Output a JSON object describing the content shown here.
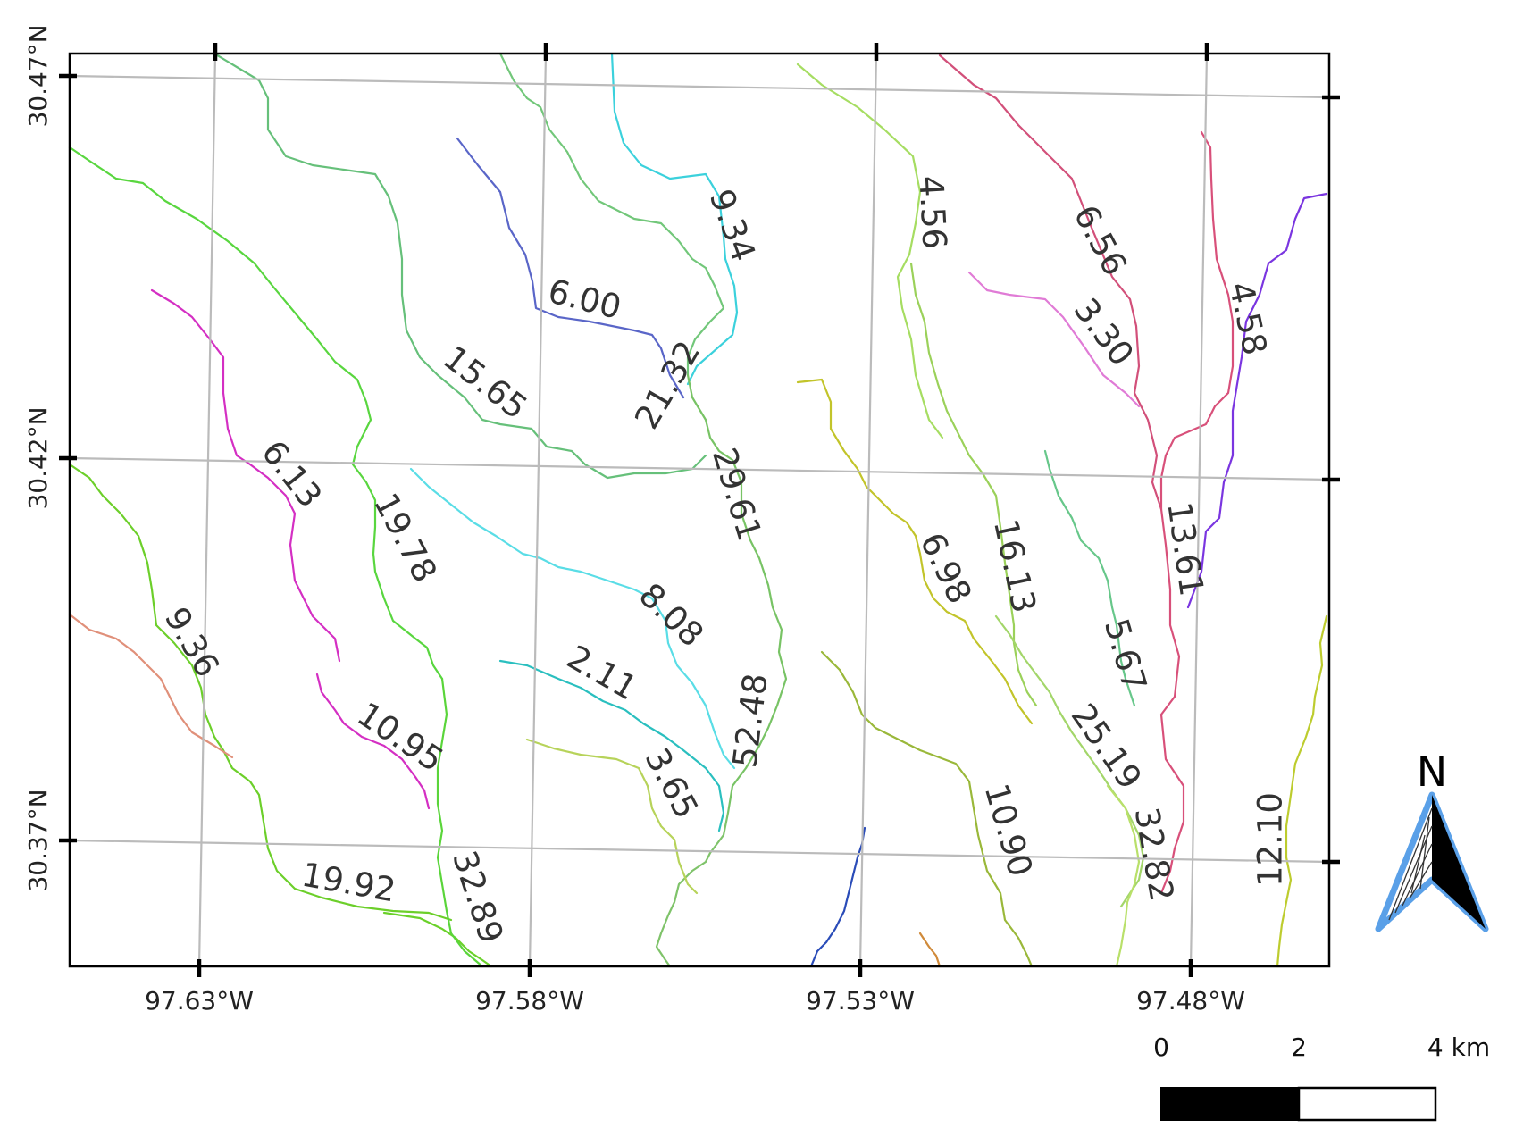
{
  "map": {
    "title": "",
    "axes": {
      "x_labels": [
        "97.63°W",
        "97.58°W",
        "97.53°W",
        "97.48°W"
      ],
      "y_labels": [
        "30.47°N",
        "30.42°N",
        "30.37°N"
      ]
    },
    "streams": [
      {
        "id": "s1",
        "label": "9.34",
        "color": "#3bd1dc"
      },
      {
        "id": "s2",
        "label": "4.56",
        "color": "#a6dd62"
      },
      {
        "id": "s3",
        "label": "6.56",
        "color": "#d2507a"
      },
      {
        "id": "s4",
        "label": "6.00",
        "color": "#5a66c8"
      },
      {
        "id": "s5",
        "label": "3.30",
        "color": "#e07bd6"
      },
      {
        "id": "s6",
        "label": "4.58",
        "color": "#7a35e0"
      },
      {
        "id": "s7",
        "label": "15.65",
        "color": "#66c07a"
      },
      {
        "id": "s8",
        "label": "21.32",
        "color": "#72c77a"
      },
      {
        "id": "s9",
        "label": "29.61",
        "color": "#78c365"
      },
      {
        "id": "s10",
        "label": "6.13",
        "color": "#d42fc3"
      },
      {
        "id": "s11",
        "label": "19.78",
        "color": "#59d63f"
      },
      {
        "id": "s12",
        "label": "6.98",
        "color": "#c2c42a"
      },
      {
        "id": "s13",
        "label": "16.13",
        "color": "#9bd15a"
      },
      {
        "id": "s14",
        "label": "13.61",
        "color": "#d8507a"
      },
      {
        "id": "s15",
        "label": "8.08",
        "color": "#5adde6"
      },
      {
        "id": "s16",
        "label": "5.67",
        "color": "#67c78a"
      },
      {
        "id": "s17",
        "label": "9.36",
        "color": "#6ccf2a"
      },
      {
        "id": "s18",
        "label": "2.11",
        "color": "#2abfbf"
      },
      {
        "id": "s19",
        "label": "52.48",
        "color": "#7fc36a"
      },
      {
        "id": "s20",
        "label": "10.95",
        "color": "#d42fc3"
      },
      {
        "id": "s21",
        "label": "25.19",
        "color": "#a3d66a"
      },
      {
        "id": "s22",
        "label": "3.65",
        "color": "#b7d35a"
      },
      {
        "id": "s23",
        "label": "10.90",
        "color": "#9ab83a"
      },
      {
        "id": "s24",
        "label": "32.82",
        "color": "#b9e06a"
      },
      {
        "id": "s25",
        "label": "12.10",
        "color": "#bdcc2e"
      },
      {
        "id": "s26",
        "label": "19.92",
        "color": "#6ad12a"
      },
      {
        "id": "s27",
        "label": "32.89",
        "color": "#5ad53a"
      },
      {
        "id": "s28",
        "label": "",
        "color": "#e0907a"
      },
      {
        "id": "s29",
        "label": "",
        "color": "#2a4cb8"
      },
      {
        "id": "s30",
        "label": "",
        "color": "#d08a3a"
      }
    ],
    "north_arrow": {
      "label": "N",
      "color": "#5aa0e8"
    },
    "scale_bar": {
      "ticks": [
        "0",
        "2",
        "4 km"
      ]
    },
    "gridline_color": "#bbbbbb"
  }
}
